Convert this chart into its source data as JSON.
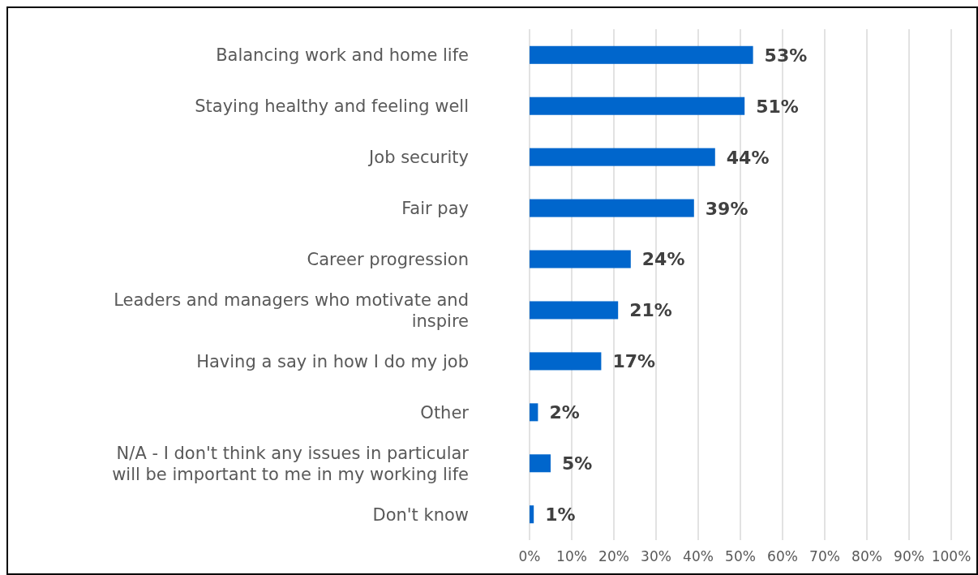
{
  "chart_data": {
    "type": "bar",
    "orientation": "horizontal",
    "categories": [
      "Balancing work and home life",
      "Staying healthy and feeling well",
      "Job security",
      "Fair pay",
      "Career progression",
      "Leaders and managers who motivate and inspire",
      "Having a say in how I do my job",
      "Other",
      "N/A - I don't think any issues in particular will be important to me in my working life",
      "Don't know"
    ],
    "values": [
      53,
      51,
      44,
      39,
      24,
      21,
      17,
      2,
      5,
      1
    ],
    "value_labels": [
      "53%",
      "51%",
      "44%",
      "39%",
      "24%",
      "21%",
      "17%",
      "2%",
      "5%",
      "1%"
    ],
    "color": "#0066cc",
    "xlim": [
      0,
      100
    ],
    "xticks": [
      {
        "value": 0,
        "label": "0%"
      },
      {
        "value": 10,
        "label": "10%"
      },
      {
        "value": 20,
        "label": "20%"
      },
      {
        "value": 30,
        "label": "30%"
      },
      {
        "value": 40,
        "label": "40%"
      },
      {
        "value": 50,
        "label": "50%"
      },
      {
        "value": 60,
        "label": "60%"
      },
      {
        "value": 70,
        "label": "70%"
      },
      {
        "value": 80,
        "label": "80%"
      },
      {
        "value": 90,
        "label": "90%"
      },
      {
        "value": 100,
        "label": "100%"
      }
    ],
    "grid": "x"
  }
}
